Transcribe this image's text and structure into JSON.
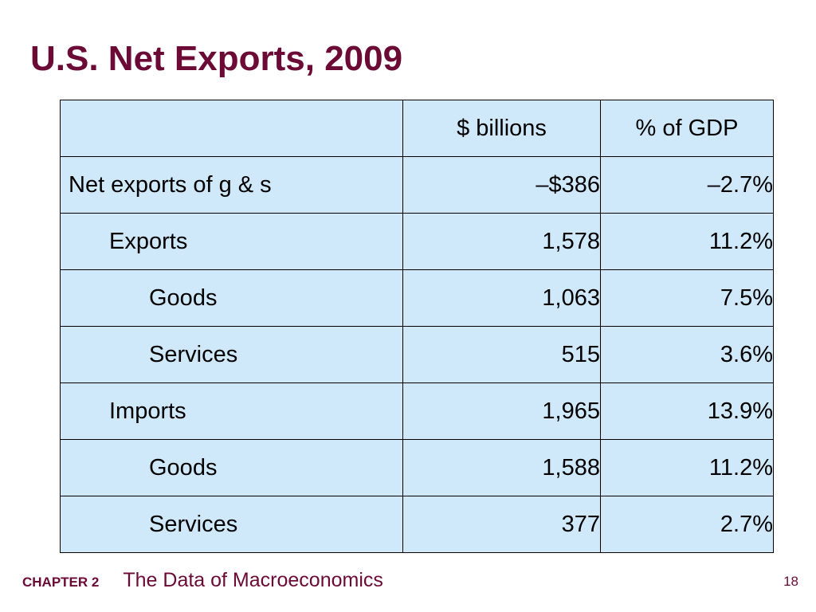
{
  "slide": {
    "title": "U.S. Net Exports, 2009"
  },
  "table": {
    "headers": [
      "",
      "$ billions",
      "% of GDP"
    ],
    "rows": [
      {
        "label": "Net exports of g & s",
        "billions": "–$386",
        "gdp": "–2.7%"
      },
      {
        "label": "Exports",
        "billions": "1,578",
        "gdp": "11.2%"
      },
      {
        "label": "Goods",
        "billions": "1,063",
        "gdp": "7.5%"
      },
      {
        "label": "Services",
        "billions": "515",
        "gdp": "3.6%"
      },
      {
        "label": "Imports",
        "billions": "1,965",
        "gdp": "13.9%"
      },
      {
        "label": "Goods",
        "billions": "1,588",
        "gdp": "11.2%"
      },
      {
        "label": "Services",
        "billions": "377",
        "gdp": "2.7%"
      }
    ]
  },
  "footer": {
    "chapter": "CHAPTER 2",
    "subject": "The Data of Macroeconomics",
    "page": "18"
  },
  "colors": {
    "title": "#6b0a34",
    "table_fill": "#cfe9fb",
    "border": "#000000"
  }
}
